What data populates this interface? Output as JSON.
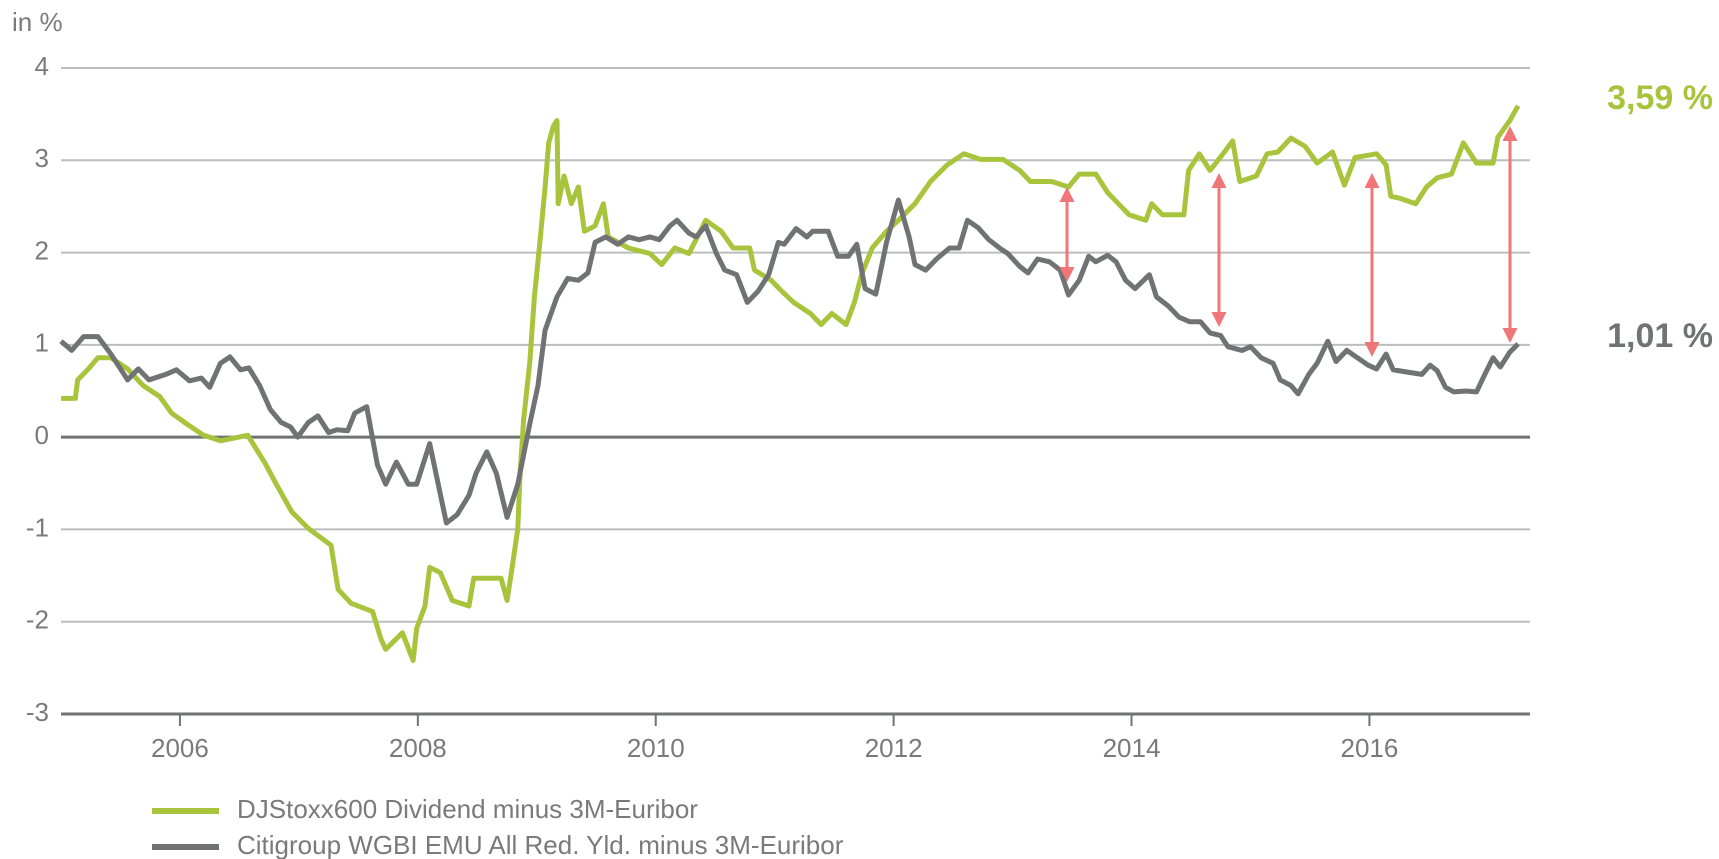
{
  "chart_data": {
    "type": "line",
    "y_label": "in %",
    "xlim": [
      2005,
      2017.35
    ],
    "xticks": [
      2006,
      2008,
      2010,
      2012,
      2014,
      2016
    ],
    "ylim": [
      -3,
      4
    ],
    "yticks": [
      -3,
      -2,
      -1,
      0,
      1,
      2,
      3,
      4
    ],
    "grid": true,
    "series": [
      {
        "name": "DJStoxx600 Dividend minus 3M-Euribor",
        "color": "#a8c43c",
        "end_label": "3,59 %",
        "x": [
          2005.0,
          2005.12,
          2005.14,
          2005.23,
          2005.31,
          2005.42,
          2005.56,
          2005.69,
          2005.83,
          2005.93,
          2006.06,
          2006.2,
          2006.34,
          2006.57,
          2006.71,
          2006.81,
          2006.94,
          2007.08,
          2007.27,
          2007.33,
          2007.44,
          2007.62,
          2007.69,
          2007.73,
          2007.87,
          2007.96,
          2007.99,
          2008.06,
          2008.1,
          2008.19,
          2008.29,
          2008.43,
          2008.47,
          2008.7,
          2008.75,
          2008.8,
          2008.84,
          2008.86,
          2008.89,
          2008.94,
          2008.98,
          2009.03,
          2009.07,
          2009.1,
          2009.14,
          2009.17,
          2009.18,
          2009.23,
          2009.29,
          2009.35,
          2009.4,
          2009.49,
          2009.56,
          2009.6,
          2009.77,
          2009.95,
          2010.05,
          2010.16,
          2010.28,
          2010.42,
          2010.55,
          2010.65,
          2010.79,
          2010.83,
          2010.97,
          2011.06,
          2011.16,
          2011.3,
          2011.39,
          2011.48,
          2011.6,
          2011.67,
          2011.73,
          2011.82,
          2011.94,
          2012.04,
          2012.18,
          2012.31,
          2012.45,
          2012.59,
          2012.73,
          2012.92,
          2013.06,
          2013.15,
          2013.33,
          2013.47,
          2013.56,
          2013.7,
          2013.8,
          2013.89,
          2013.98,
          2014.12,
          2014.17,
          2014.26,
          2014.44,
          2014.48,
          2014.57,
          2014.66,
          2014.77,
          2014.85,
          2014.91,
          2015.05,
          2015.14,
          2015.23,
          2015.34,
          2015.46,
          2015.56,
          2015.69,
          2015.79,
          2015.88,
          2016.06,
          2016.14,
          2016.18,
          2016.25,
          2016.39,
          2016.48,
          2016.57,
          2016.69,
          2016.79,
          2016.9,
          2017.04,
          2017.08,
          2017.18,
          2017.25
        ],
        "values": [
          0.42,
          0.42,
          0.62,
          0.74,
          0.86,
          0.86,
          0.74,
          0.56,
          0.44,
          0.26,
          0.14,
          0.02,
          -0.04,
          0.02,
          -0.27,
          -0.51,
          -0.81,
          -0.99,
          -1.17,
          -1.65,
          -1.8,
          -1.89,
          -2.19,
          -2.3,
          -2.12,
          -2.42,
          -2.07,
          -1.83,
          -1.41,
          -1.47,
          -1.77,
          -1.83,
          -1.53,
          -1.53,
          -1.77,
          -1.35,
          -0.99,
          -0.39,
          0.2,
          0.8,
          1.52,
          2.17,
          2.71,
          3.19,
          3.37,
          3.43,
          2.53,
          2.83,
          2.53,
          2.71,
          2.23,
          2.29,
          2.53,
          2.17,
          2.05,
          1.99,
          1.87,
          2.05,
          1.99,
          2.35,
          2.23,
          2.05,
          2.05,
          1.81,
          1.7,
          1.58,
          1.46,
          1.34,
          1.22,
          1.34,
          1.22,
          1.46,
          1.76,
          2.05,
          2.23,
          2.35,
          2.53,
          2.77,
          2.95,
          3.07,
          3.01,
          3.01,
          2.89,
          2.77,
          2.77,
          2.71,
          2.85,
          2.85,
          2.65,
          2.53,
          2.41,
          2.35,
          2.53,
          2.41,
          2.41,
          2.89,
          3.07,
          2.89,
          3.07,
          3.21,
          2.77,
          2.83,
          3.07,
          3.09,
          3.24,
          3.15,
          2.97,
          3.09,
          2.73,
          3.03,
          3.07,
          2.95,
          2.61,
          2.59,
          2.53,
          2.71,
          2.81,
          2.85,
          3.19,
          2.97,
          2.97,
          3.25,
          3.43,
          3.59
        ]
      },
      {
        "name": "Citigroup WGBI EMU All Red. Yld. minus 3M-Euribor",
        "color": "#707274",
        "end_label": "1,01 %",
        "x": [
          2005.0,
          2005.09,
          2005.19,
          2005.31,
          2005.42,
          2005.56,
          2005.65,
          2005.74,
          2005.88,
          2005.97,
          2006.08,
          2006.18,
          2006.25,
          2006.34,
          2006.42,
          2006.51,
          2006.58,
          2006.67,
          2006.76,
          2006.85,
          2006.93,
          2006.99,
          2007.08,
          2007.16,
          2007.25,
          2007.32,
          2007.41,
          2007.47,
          2007.57,
          2007.66,
          2007.73,
          2007.82,
          2007.92,
          2007.99,
          2008.1,
          2008.24,
          2008.33,
          2008.43,
          2008.49,
          2008.58,
          2008.66,
          2008.75,
          2008.84,
          2008.94,
          2009.01,
          2009.07,
          2009.17,
          2009.26,
          2009.35,
          2009.43,
          2009.49,
          2009.58,
          2009.68,
          2009.77,
          2009.86,
          2009.95,
          2010.03,
          2010.12,
          2010.18,
          2010.28,
          2010.34,
          2010.42,
          2010.51,
          2010.58,
          2010.68,
          2010.77,
          2010.86,
          2010.95,
          2011.03,
          2011.08,
          2011.18,
          2011.27,
          2011.32,
          2011.45,
          2011.53,
          2011.62,
          2011.69,
          2011.76,
          2011.85,
          2011.94,
          2012.04,
          2012.13,
          2012.18,
          2012.27,
          2012.36,
          2012.47,
          2012.55,
          2012.62,
          2012.71,
          2012.8,
          2012.9,
          2012.96,
          2013.06,
          2013.13,
          2013.21,
          2013.31,
          2013.4,
          2013.47,
          2013.56,
          2013.64,
          2013.7,
          2013.8,
          2013.87,
          2013.95,
          2014.03,
          2014.15,
          2014.21,
          2014.31,
          2014.4,
          2014.49,
          2014.58,
          2014.66,
          2014.75,
          2014.81,
          2014.93,
          2015.0,
          2015.09,
          2015.19,
          2015.25,
          2015.34,
          2015.4,
          2015.49,
          2015.56,
          2015.65,
          2015.72,
          2015.81,
          2015.9,
          2015.99,
          2016.06,
          2016.14,
          2016.2,
          2016.34,
          2016.44,
          2016.51,
          2016.57,
          2016.64,
          2016.71,
          2016.81,
          2016.9,
          2016.97,
          2017.04,
          2017.1,
          2017.18,
          2017.25
        ],
        "values": [
          1.04,
          0.94,
          1.09,
          1.09,
          0.9,
          0.62,
          0.74,
          0.62,
          0.68,
          0.73,
          0.61,
          0.64,
          0.54,
          0.8,
          0.87,
          0.73,
          0.75,
          0.56,
          0.3,
          0.16,
          0.11,
          0.0,
          0.16,
          0.23,
          0.05,
          0.08,
          0.07,
          0.26,
          0.33,
          -0.3,
          -0.51,
          -0.27,
          -0.51,
          -0.51,
          -0.07,
          -0.93,
          -0.84,
          -0.63,
          -0.39,
          -0.16,
          -0.39,
          -0.87,
          -0.51,
          0.14,
          0.56,
          1.16,
          1.52,
          1.72,
          1.7,
          1.78,
          2.11,
          2.17,
          2.09,
          2.17,
          2.14,
          2.17,
          2.14,
          2.29,
          2.35,
          2.21,
          2.17,
          2.29,
          1.99,
          1.81,
          1.76,
          1.46,
          1.58,
          1.76,
          2.11,
          2.09,
          2.26,
          2.17,
          2.23,
          2.23,
          1.96,
          1.96,
          2.09,
          1.61,
          1.55,
          2.11,
          2.57,
          2.17,
          1.87,
          1.81,
          1.93,
          2.05,
          2.05,
          2.35,
          2.27,
          2.14,
          2.04,
          1.99,
          1.85,
          1.78,
          1.93,
          1.9,
          1.81,
          1.54,
          1.7,
          1.96,
          1.9,
          1.97,
          1.9,
          1.7,
          1.61,
          1.76,
          1.52,
          1.42,
          1.3,
          1.25,
          1.25,
          1.13,
          1.1,
          0.98,
          0.94,
          0.98,
          0.86,
          0.8,
          0.62,
          0.56,
          0.47,
          0.68,
          0.8,
          1.04,
          0.82,
          0.94,
          0.86,
          0.78,
          0.74,
          0.9,
          0.73,
          0.7,
          0.68,
          0.78,
          0.72,
          0.54,
          0.49,
          0.5,
          0.49,
          0.68,
          0.86,
          0.76,
          0.92,
          1.01
        ]
      }
    ]
  }
}
